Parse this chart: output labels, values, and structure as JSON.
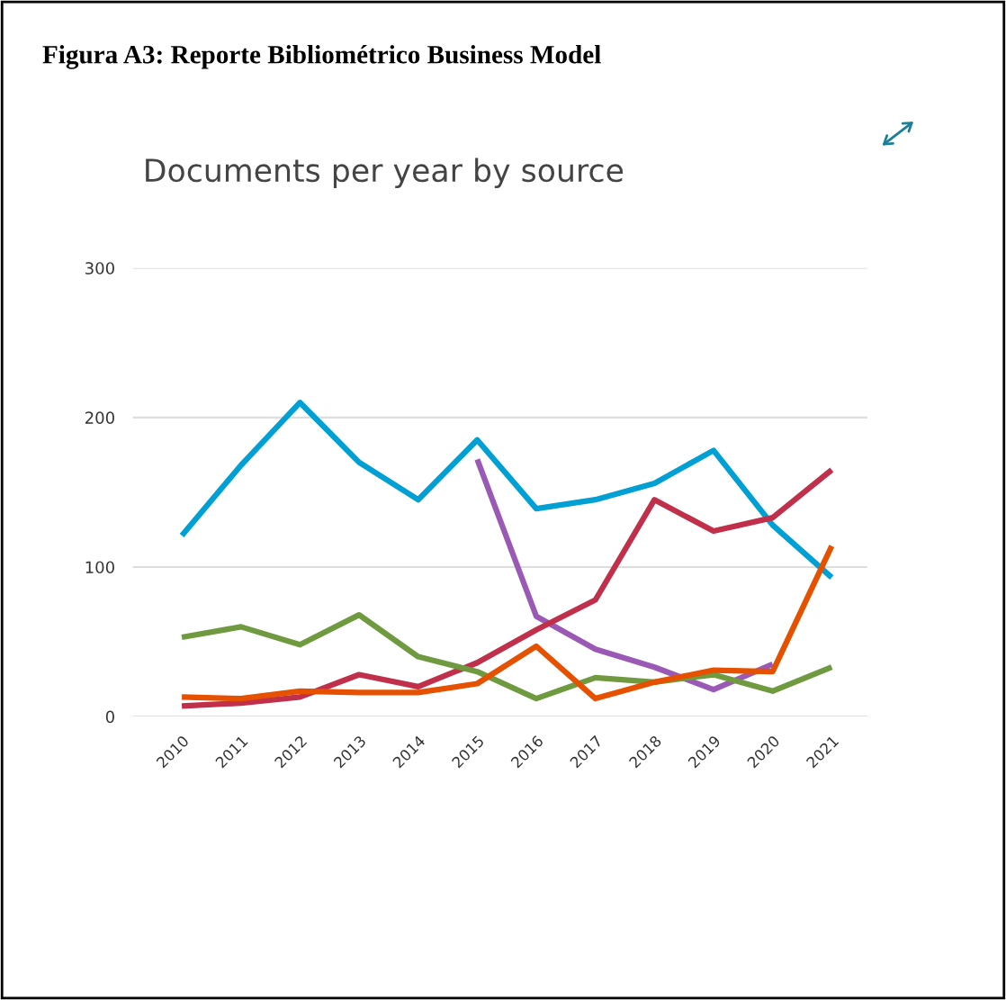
{
  "chart_data": {
    "type": "line",
    "title": "Figura A3: Reporte Bibliométrico Business Model",
    "subtitle": "Documents per year by source",
    "categories": [
      "2010",
      "2011",
      "2012",
      "2013",
      "2014",
      "2015",
      "2016",
      "2017",
      "2018",
      "2019",
      "2020",
      "2021"
    ],
    "series": [
      {
        "color": "#009fd4",
        "values": [
          121,
          168,
          210,
          170,
          145,
          185,
          139,
          145,
          156,
          178,
          128,
          93
        ]
      },
      {
        "color": "#9b59b6",
        "values": [
          null,
          null,
          null,
          null,
          null,
          172,
          67,
          45,
          33,
          18,
          35,
          null
        ]
      },
      {
        "color": "#c0304a",
        "values": [
          7,
          9,
          13,
          28,
          20,
          36,
          58,
          78,
          145,
          124,
          133,
          165
        ]
      },
      {
        "color": "#6f9a3f",
        "values": [
          53,
          60,
          48,
          68,
          40,
          30,
          12,
          26,
          23,
          28,
          17,
          33
        ]
      },
      {
        "color": "#e65100",
        "values": [
          13,
          12,
          17,
          16,
          16,
          22,
          47,
          12,
          23,
          31,
          30,
          114
        ]
      }
    ],
    "ylim": [
      0,
      300
    ],
    "yticks": [
      0,
      100,
      200,
      300
    ],
    "grid": "y",
    "marker": "none",
    "line_style": "solid"
  }
}
